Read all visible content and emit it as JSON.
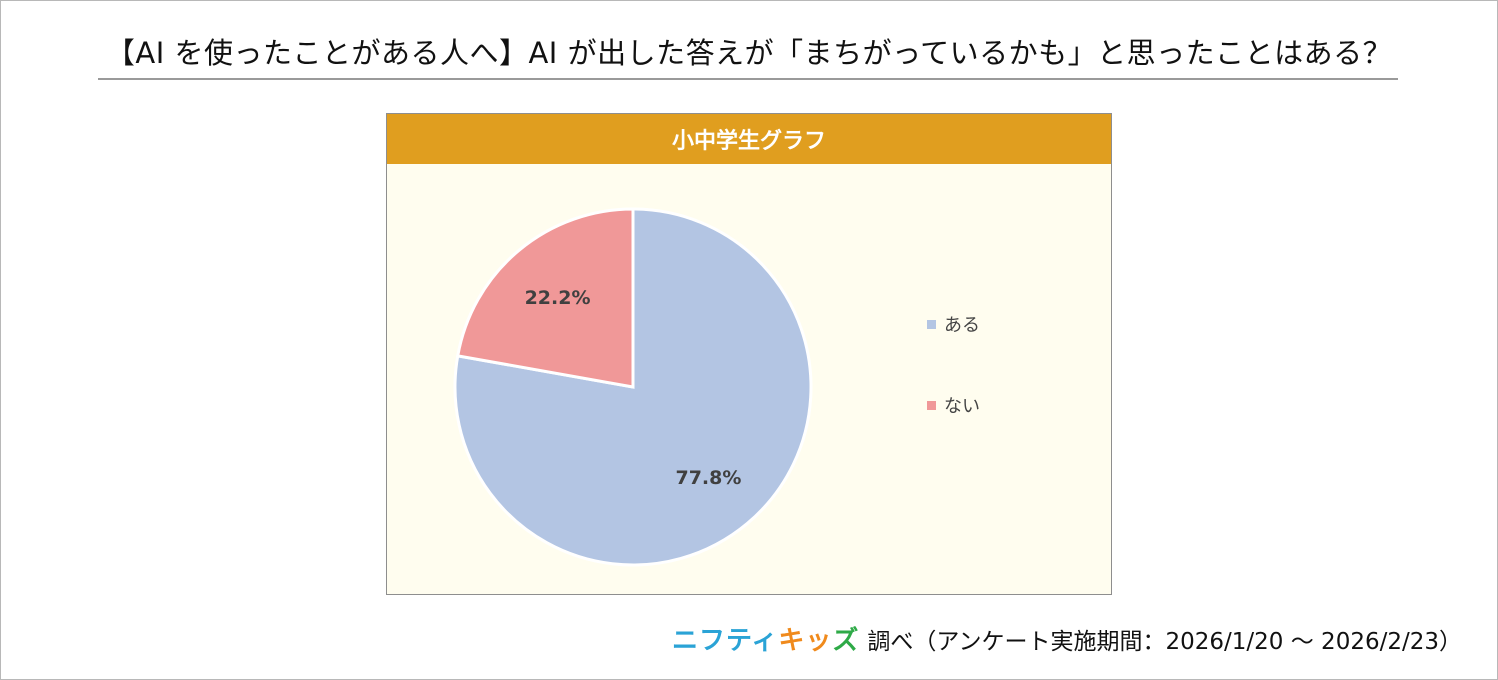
{
  "title": "【AI を使ったことがある人へ】AI が出した答えが「まちがっているかも」と思ったことはある？",
  "chart_header": "小中学生グラフ",
  "chart_data": {
    "type": "pie",
    "title": "小中学生グラフ",
    "categories": [
      "ある",
      "ない"
    ],
    "values": [
      77.8,
      22.2
    ],
    "labels": [
      "77.8%",
      "22.2%"
    ],
    "colors": [
      "#b3c5e3",
      "#f09898"
    ],
    "legend_position": "right"
  },
  "footer": {
    "logo_part1": "ニフティ",
    "logo_part2": "キッ",
    "logo_part3": "ズ",
    "note": "調べ（アンケート実施期間：2026/1/20 ～ 2026/2/23）"
  }
}
